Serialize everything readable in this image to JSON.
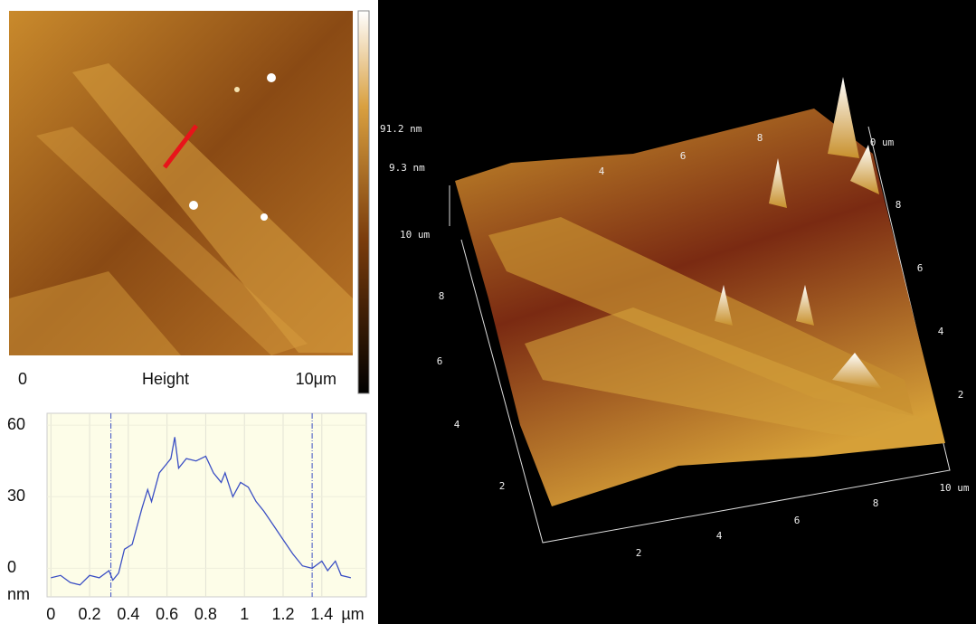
{
  "afm_image": {
    "scale_start": "0",
    "channel": "Height",
    "scale_end": "10μm"
  },
  "chart_data": {
    "type": "line",
    "x": [
      0,
      0.05,
      0.1,
      0.15,
      0.2,
      0.25,
      0.3,
      0.32,
      0.35,
      0.38,
      0.42,
      0.47,
      0.5,
      0.52,
      0.56,
      0.6,
      0.62,
      0.64,
      0.66,
      0.7,
      0.75,
      0.8,
      0.84,
      0.88,
      0.9,
      0.94,
      0.98,
      1.02,
      1.06,
      1.1,
      1.15,
      1.2,
      1.25,
      1.3,
      1.35,
      1.4,
      1.43,
      1.47,
      1.5,
      1.55
    ],
    "series": [
      {
        "color": "#3b4fc4",
        "values": [
          -4,
          -3,
          -6,
          -7,
          -3,
          -4,
          -1,
          -5,
          -2,
          8,
          10,
          25,
          33,
          28,
          40,
          44,
          46,
          55,
          42,
          46,
          45,
          47,
          40,
          36,
          40,
          30,
          36,
          34,
          28,
          24,
          18,
          12,
          6,
          1,
          0,
          3,
          -1,
          3,
          -3,
          -4
        ]
      }
    ],
    "xlim": [
      -0.02,
      1.63
    ],
    "ylim": [
      -12,
      65
    ],
    "xticks": [
      0,
      0.2,
      0.4,
      0.6,
      0.8,
      1,
      1.2,
      1.4
    ],
    "yticks": [
      0,
      30,
      60
    ],
    "xlabel": "µm",
    "ylabel": "nm",
    "grid": true,
    "cursors": [
      0.31,
      1.35
    ]
  },
  "surface_3d": {
    "z_max": "91.2 nm",
    "z_min": "9.3 nm",
    "z_axis_top": "10 um",
    "left_axis": [
      "8",
      "6",
      "4",
      "2"
    ],
    "bottom_axis": [
      "2",
      "4",
      "6",
      "8",
      "10 um"
    ],
    "right_axis": [
      "2",
      "4",
      "6",
      "8",
      "0 um"
    ],
    "top_axis": [
      "4",
      "6",
      "8"
    ]
  }
}
